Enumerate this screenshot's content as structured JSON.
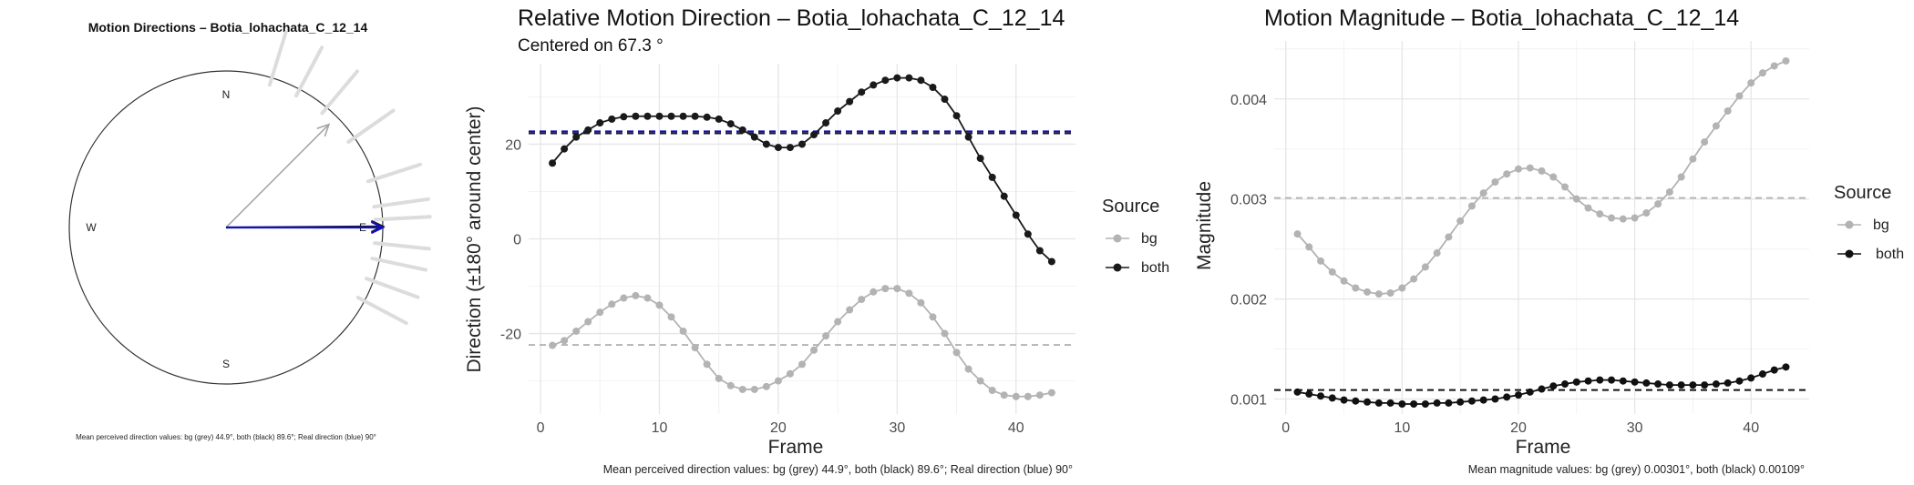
{
  "chart_data": [
    {
      "type": "compass",
      "title": "Motion Directions – Botia_lohachata_C_12_14",
      "cardinal_labels": {
        "N": "N",
        "E": "E",
        "S": "S",
        "W": "W"
      },
      "arrows": [
        {
          "source": "bg",
          "direction_deg": 44.9,
          "color": "#a6a6a6"
        },
        {
          "source": "both",
          "direction_deg": 89.6,
          "color": "#1a1a1a"
        },
        {
          "source": "real",
          "direction_deg": 90,
          "color": "#1010c0"
        }
      ],
      "outer_rays_deg": [
        17,
        28,
        40,
        55,
        72,
        82,
        87,
        96,
        102,
        110,
        118
      ],
      "caption": "Mean perceived direction values: bg (grey) 44.9°, both (black) 89.6°; Real direction (blue) 90°"
    },
    {
      "type": "line",
      "title": "Relative Motion Direction – Botia_lohachata_C_12_14",
      "subtitle": "Centered on  67.3 °",
      "xlabel": "Frame",
      "ylabel": "Direction (±180° around center)",
      "xlim": [
        -1,
        45
      ],
      "ylim": [
        -37,
        37
      ],
      "xticks": [
        0,
        10,
        20,
        30,
        40
      ],
      "yticks": [
        -20,
        0,
        20
      ],
      "x": [
        1,
        2,
        3,
        4,
        5,
        6,
        7,
        8,
        9,
        10,
        11,
        12,
        13,
        14,
        15,
        16,
        17,
        18,
        19,
        20,
        21,
        22,
        23,
        24,
        25,
        26,
        27,
        28,
        29,
        30,
        31,
        32,
        33,
        34,
        35,
        36,
        37,
        38,
        39,
        40,
        41,
        42,
        43
      ],
      "series": [
        {
          "name": "bg",
          "color": "#b3b3b3",
          "values": [
            -22.5,
            -21.5,
            -19.5,
            -17.5,
            -15.5,
            -13.8,
            -12.5,
            -12.0,
            -12.5,
            -14.0,
            -16.5,
            -19.5,
            -23.0,
            -26.5,
            -29.5,
            -31.0,
            -31.8,
            -31.8,
            -31.2,
            -30.0,
            -28.5,
            -26.5,
            -23.5,
            -20.5,
            -17.5,
            -15.0,
            -12.8,
            -11.2,
            -10.5,
            -10.5,
            -11.5,
            -13.5,
            -16.5,
            -20.0,
            -24.0,
            -27.5,
            -30.0,
            -32.0,
            -33.0,
            -33.3,
            -33.3,
            -33.0,
            -32.5
          ]
        },
        {
          "name": "both",
          "color": "#1a1a1a",
          "values": [
            16.0,
            19.0,
            21.5,
            23.0,
            24.5,
            25.3,
            25.8,
            25.9,
            25.9,
            25.9,
            25.9,
            25.9,
            25.9,
            25.7,
            25.3,
            24.3,
            23.0,
            21.5,
            20.0,
            19.3,
            19.3,
            20.0,
            22.0,
            24.5,
            27.0,
            29.0,
            31.0,
            32.5,
            33.5,
            34.0,
            34.0,
            33.5,
            32.0,
            29.5,
            26.0,
            21.5,
            17.0,
            13.0,
            9.0,
            5.0,
            1.0,
            -2.5,
            -4.8
          ]
        }
      ],
      "hlines": [
        {
          "label": "bg",
          "y": -22.4,
          "color": "#b3b3b3"
        },
        {
          "label": "both",
          "y": 22.3,
          "color": "#1a1a1a"
        },
        {
          "label": "real",
          "y": 22.7,
          "color": "#1010c0"
        }
      ],
      "legend_title": "Source",
      "legend_position": "right",
      "caption": "Mean perceived direction values: bg (grey) 44.9°, both (black) 89.6°; Real direction (blue) 90°"
    },
    {
      "type": "line",
      "title": "Motion Magnitude – Botia_lohachata_C_12_14",
      "xlabel": "Frame",
      "ylabel": "Magnitude",
      "xlim": [
        -1,
        45
      ],
      "ylim": [
        0.00085,
        0.00458
      ],
      "xticks": [
        0,
        10,
        20,
        30,
        40
      ],
      "yticks": [
        0.001,
        0.002,
        0.003,
        0.004
      ],
      "ytick_labels": [
        "0.001",
        "0.002",
        "0.003",
        "0.004"
      ],
      "x": [
        1,
        2,
        3,
        4,
        5,
        6,
        7,
        8,
        9,
        10,
        11,
        12,
        13,
        14,
        15,
        16,
        17,
        18,
        19,
        20,
        21,
        22,
        23,
        24,
        25,
        26,
        27,
        28,
        29,
        30,
        31,
        32,
        33,
        34,
        35,
        36,
        37,
        38,
        39,
        40,
        41,
        42,
        43
      ],
      "series": [
        {
          "name": "bg",
          "color": "#b3b3b3",
          "values": [
            0.00265,
            0.00252,
            0.00238,
            0.00227,
            0.00218,
            0.00211,
            0.00207,
            0.00205,
            0.00206,
            0.00211,
            0.0022,
            0.00232,
            0.00246,
            0.00262,
            0.00278,
            0.00293,
            0.00306,
            0.00317,
            0.00325,
            0.0033,
            0.00331,
            0.00328,
            0.00322,
            0.00312,
            0.003,
            0.00291,
            0.00285,
            0.00281,
            0.0028,
            0.00281,
            0.00286,
            0.00295,
            0.00307,
            0.00322,
            0.0034,
            0.00357,
            0.00373,
            0.00388,
            0.00403,
            0.00416,
            0.00426,
            0.00433,
            0.00438
          ]
        },
        {
          "name": "both",
          "color": "#111111",
          "values": [
            0.00107,
            0.00105,
            0.00103,
            0.00101,
            0.00099,
            0.00098,
            0.00097,
            0.00096,
            0.00096,
            0.00095,
            0.00095,
            0.00095,
            0.00096,
            0.00096,
            0.00097,
            0.00098,
            0.00099,
            0.001,
            0.00102,
            0.00104,
            0.00107,
            0.0011,
            0.00113,
            0.00115,
            0.00117,
            0.00118,
            0.00119,
            0.00119,
            0.00118,
            0.00117,
            0.00116,
            0.00115,
            0.00114,
            0.00114,
            0.00114,
            0.00114,
            0.00115,
            0.00116,
            0.00118,
            0.00121,
            0.00125,
            0.00129,
            0.00132
          ]
        }
      ],
      "hlines": [
        {
          "label": "bg",
          "y": 0.00301,
          "color": "#b3b3b3"
        },
        {
          "label": "both",
          "y": 0.00109,
          "color": "#111111"
        }
      ],
      "legend_title": "Source",
      "legend_position": "right",
      "caption": "Mean magnitude values: bg (grey) 0.00301°, both (black) 0.00109°"
    }
  ]
}
